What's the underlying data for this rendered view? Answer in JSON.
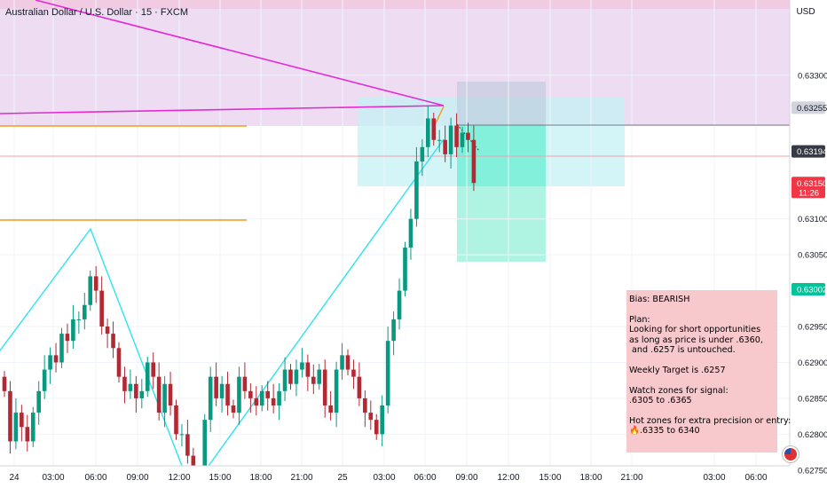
{
  "header": {
    "symbol_title": "Australian Dollar / U.S. Dollar · 15 · FXCM",
    "currency": "USD"
  },
  "chart_data": {
    "type": "candlestick",
    "symbol": "Australian Dollar / U.S. Dollar",
    "interval": "15",
    "source": "FXCM",
    "ylim": [
      0.62725,
      0.63405
    ],
    "x_ticks": [
      "24",
      "03:00",
      "06:00",
      "09:00",
      "12:00",
      "15:00",
      "18:00",
      "21:00",
      "25",
      "03:00",
      "06:00",
      "09:00",
      "12:00",
      "15:00",
      "18:00",
      "21:00",
      "03:00",
      "06:00"
    ],
    "y_ticks": [
      "0.62750",
      "0.62800",
      "0.62850",
      "0.62900",
      "0.62950",
      "0.63050",
      "0.63100",
      "0.63300"
    ],
    "price_labels": [
      {
        "value": "0.63255",
        "color": "#d1d4dc",
        "text_color": "#131722"
      },
      {
        "value": "0.63194",
        "color": "#363a45",
        "text_color": "#ffffff"
      },
      {
        "value": "0.63150",
        "extra": "11:26",
        "color": "#f23645",
        "text_color": "#ffffff"
      },
      {
        "value": "0.63002",
        "color": "#00c39a",
        "text_color": "#ffffff"
      }
    ],
    "close_price_path": [
      0.6286,
      0.6279,
      0.6283,
      0.6281,
      0.6279,
      0.6283,
      0.6286,
      0.6289,
      0.6291,
      0.629,
      0.6294,
      0.6293,
      0.6296,
      0.6296,
      0.6298,
      0.6302,
      0.63,
      0.6295,
      0.6294,
      0.6292,
      0.6288,
      0.6286,
      0.6287,
      0.6285,
      0.6286,
      0.629,
      0.6288,
      0.6283,
      0.6287,
      0.6284,
      0.628,
      0.628,
      0.6277,
      0.6273,
      0.6272,
      0.6282,
      0.6288,
      0.6285,
      0.6287,
      0.6284,
      0.6283,
      0.6288,
      0.6286,
      0.6285,
      0.6284,
      0.6286,
      0.6285,
      0.6284,
      0.6286,
      0.6289,
      0.6287,
      0.6289,
      0.629,
      0.6288,
      0.6287,
      0.6289,
      0.6284,
      0.6283,
      0.6289,
      0.6291,
      0.6289,
      0.6288,
      0.6285,
      0.6283,
      0.6282,
      0.628,
      0.6284,
      0.6293,
      0.6296,
      0.63,
      0.6306,
      0.631,
      0.6318,
      0.632,
      0.6324,
      0.6321,
      0.6321,
      0.6319,
      0.6323,
      0.632,
      0.6322,
      0.6321,
      0.6315
    ],
    "colors": {
      "up": "#089981",
      "down": "#b22833",
      "grid": "#f0f3fa",
      "axis_text": "#131722"
    }
  },
  "note": {
    "lines": [
      "Bias: BEARISH",
      "",
      "Plan:",
      "Looking for short opportunities",
      "as long as price is under .6360,",
      " and .6257 is untouched.",
      "",
      "Weekly Target is .6257",
      "",
      "Watch zones for signal:",
      ".6305 to .6365",
      "",
      "Hot zones for extra precision or entry:",
      "🔥.6335 to 6340"
    ]
  }
}
